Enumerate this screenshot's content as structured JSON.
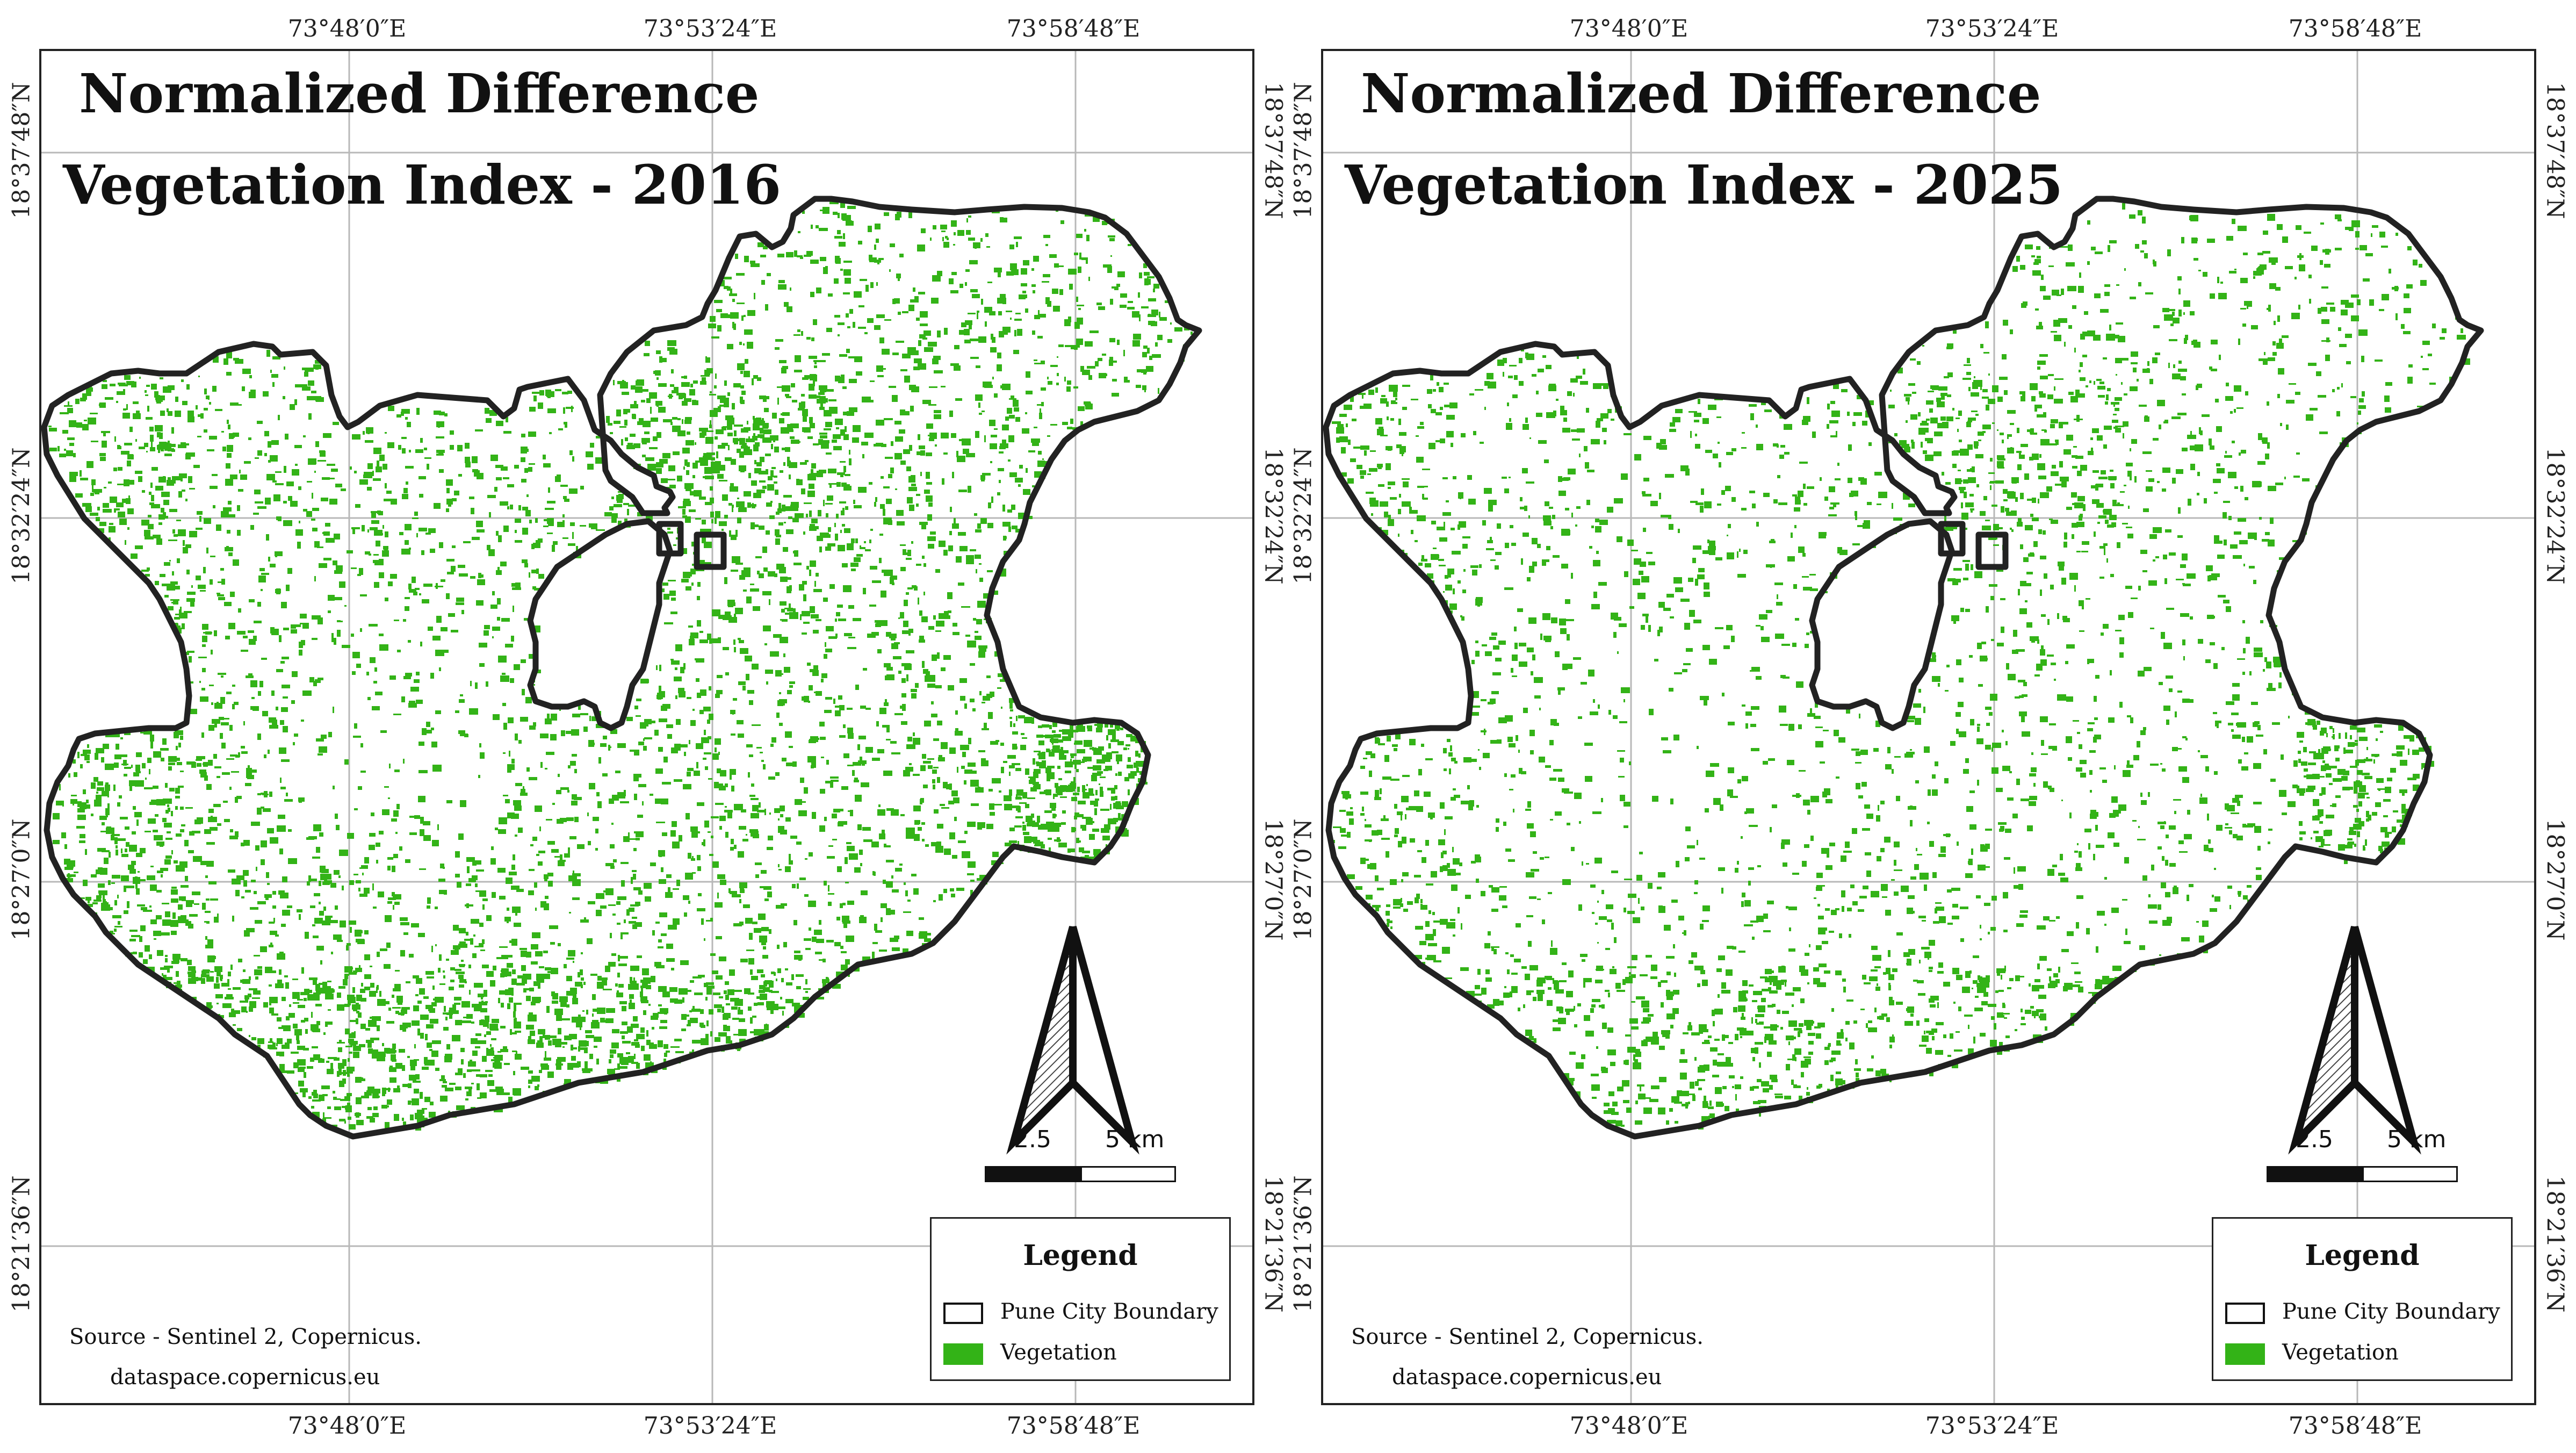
{
  "colors": {
    "vegetation": "#33b317",
    "boundary": "#222222",
    "graticule": "#b8b8b8",
    "frame": "#222222"
  },
  "panels": [
    {
      "title_line1": "Normalized Difference",
      "title_line2": "Vegetation Index - 2016",
      "year": "2016",
      "vegetation_density": "high"
    },
    {
      "title_line1": "Normalized Difference",
      "title_line2": "Vegetation Index - 2025",
      "year": "2025",
      "vegetation_density": "lower"
    }
  ],
  "longitudes": [
    "73°48′0″E",
    "73°53′24″E",
    "73°58′48″E"
  ],
  "latitudes": [
    "18°37′48″N",
    "18°32′24″N",
    "18°27′0″N",
    "18°21′36″N"
  ],
  "legend": {
    "title": "Legend",
    "boundary_label": "Pune City Boundary",
    "vegetation_label": "Vegetation"
  },
  "source": {
    "line1": "Source - Sentinel 2, Copernicus.",
    "line2": "dataspace.copernicus.eu"
  },
  "scale": {
    "mid_label": "2.5",
    "end_label": "5 km"
  },
  "north_arrow_icon": "north-arrow-icon"
}
